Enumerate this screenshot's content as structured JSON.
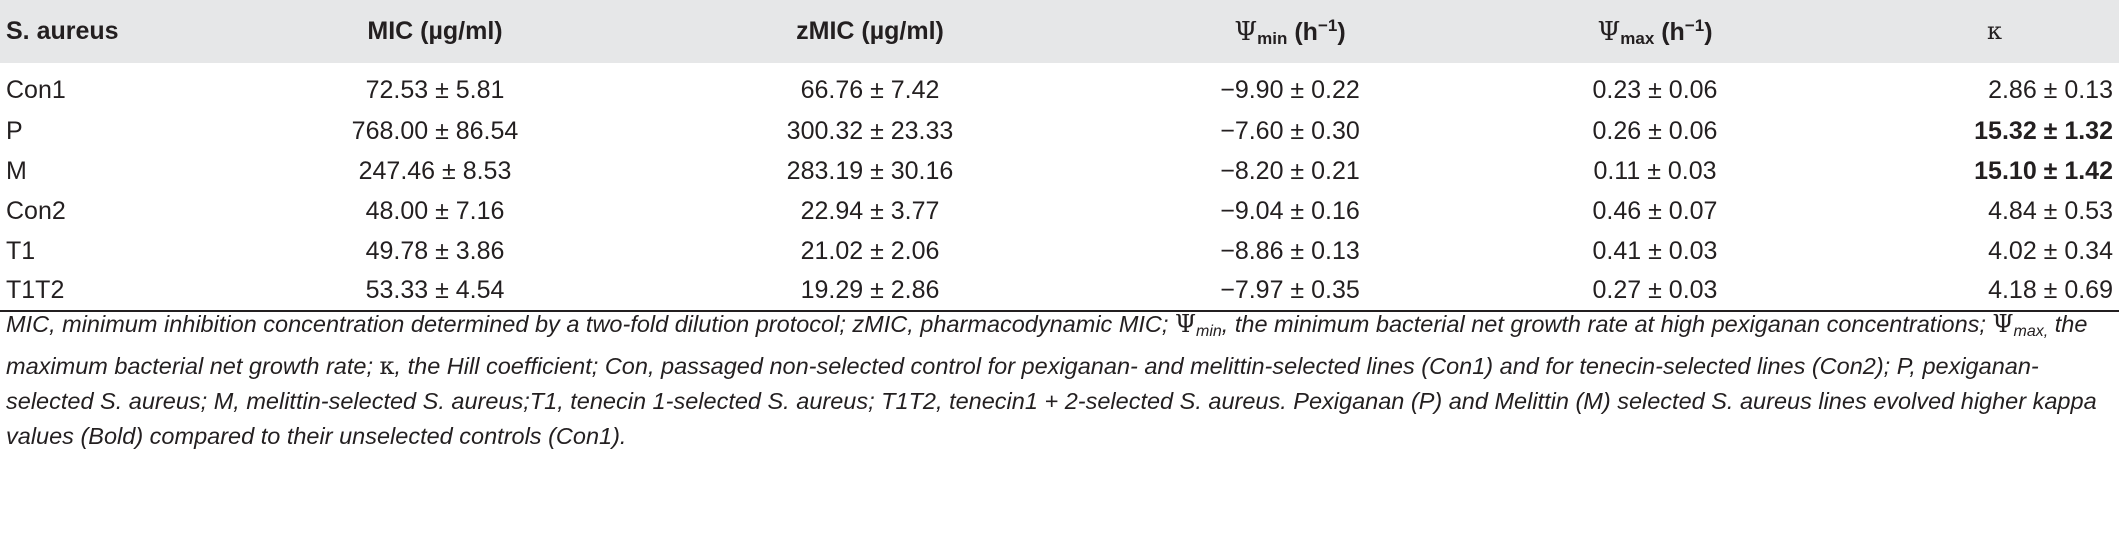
{
  "table": {
    "headers": {
      "strain": "S. aureus",
      "mic": "MIC (µg/ml)",
      "zmic": "zMIC (µg/ml)",
      "psi_symbol": "Ψ",
      "psi_min_sub": "min",
      "psi_max_sub": "max",
      "unit_prefix": "(h",
      "unit_exp": "−1",
      "unit_suffix": ")",
      "kappa": "κ"
    },
    "rows": [
      {
        "strain": "Con1",
        "mic": "72.53 ± 5.81",
        "zmic": "66.76 ± 7.42",
        "psi_min": "−9.90 ± 0.22",
        "psi_max": "0.23 ± 0.06",
        "kappa": "2.86 ± 0.13",
        "kappa_bold": false
      },
      {
        "strain": "P",
        "mic": "768.00 ± 86.54",
        "zmic": "300.32 ± 23.33",
        "psi_min": "−7.60 ± 0.30",
        "psi_max": "0.26 ± 0.06",
        "kappa": "15.32 ± 1.32",
        "kappa_bold": true
      },
      {
        "strain": "M",
        "mic": "247.46 ± 8.53",
        "zmic": "283.19 ± 30.16",
        "psi_min": "−8.20 ± 0.21",
        "psi_max": "0.11 ± 0.03",
        "kappa": "15.10 ± 1.42",
        "kappa_bold": true
      },
      {
        "strain": "Con2",
        "mic": "48.00 ± 7.16",
        "zmic": "22.94 ± 3.77",
        "psi_min": "−9.04 ± 0.16",
        "psi_max": "0.46 ± 0.07",
        "kappa": "4.84 ± 0.53",
        "kappa_bold": false
      },
      {
        "strain": "T1",
        "mic": "49.78 ± 3.86",
        "zmic": "21.02 ± 2.06",
        "psi_min": "−8.86 ± 0.13",
        "psi_max": "0.41 ± 0.03",
        "kappa": "4.02 ± 0.34",
        "kappa_bold": false
      },
      {
        "strain": "T1T2",
        "mic": "53.33 ± 4.54",
        "zmic": "19.29 ± 2.86",
        "psi_min": "−7.97 ± 0.35",
        "psi_max": "0.27 ± 0.03",
        "kappa": "4.18 ± 0.69",
        "kappa_bold": false
      }
    ]
  },
  "caption": {
    "part1": "MIC, minimum inhibition concentration determined by a two-fold dilution protocol; zMIC, pharmacodynamic MIC; ",
    "psi_symbol": "Ψ",
    "min_sub": "min",
    "part2": ", the minimum bacterial net growth rate at high pexiganan concentrations; ",
    "max_sub": "max",
    "max_sep": ",",
    "part3": " the maximum bacterial net growth rate; ",
    "kappa_symbol": "κ",
    "part4": ", the Hill coefficient; Con, passaged non-selected control for pexiganan- and melittin-selected lines (Con1) and for tenecin-selected lines (Con2); P, pexiganan-selected S. aureus; M, melittin-selected S. aureus;T1, tenecin 1-selected S. aureus; T1T2, tenecin1 + 2-selected S. aureus. Pexiganan (P) and Melittin (M) selected S. aureus lines evolved higher kappa values (Bold) compared to their unselected controls (Con1)."
  }
}
